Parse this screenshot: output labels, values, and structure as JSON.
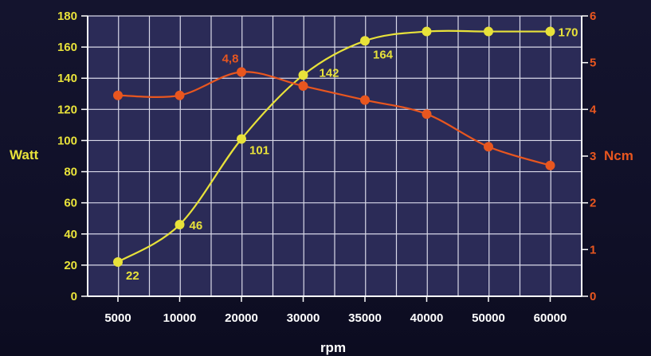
{
  "chart_data": {
    "type": "line",
    "categories": [
      "5000",
      "10000",
      "20000",
      "30000",
      "35000",
      "40000",
      "50000",
      "60000"
    ],
    "xlabel": "rpm",
    "ylabel_left": "Watt",
    "ylabel_right": "Ncm",
    "ylim_left": [
      0,
      180
    ],
    "ylim_right": [
      0,
      6
    ],
    "yticks_left": [
      "0",
      "20",
      "40",
      "60",
      "80",
      "100",
      "120",
      "140",
      "160",
      "180"
    ],
    "yticks_right": [
      "0",
      "1",
      "2",
      "3",
      "4",
      "5",
      "6"
    ],
    "grid": true,
    "series": [
      {
        "axis": "left",
        "color": "#e8e23a",
        "values": [
          22,
          46,
          101,
          142,
          164,
          170,
          170,
          170
        ],
        "labels": [
          "22",
          "46",
          "101",
          "142",
          "164",
          "",
          "",
          "170"
        ]
      },
      {
        "axis": "right",
        "color": "#e8561f",
        "values": [
          4.3,
          4.3,
          4.8,
          4.5,
          4.2,
          3.9,
          3.2,
          2.8
        ],
        "labels": [
          "",
          "",
          "4,8",
          "",
          "",
          "",
          "",
          ""
        ]
      }
    ]
  }
}
